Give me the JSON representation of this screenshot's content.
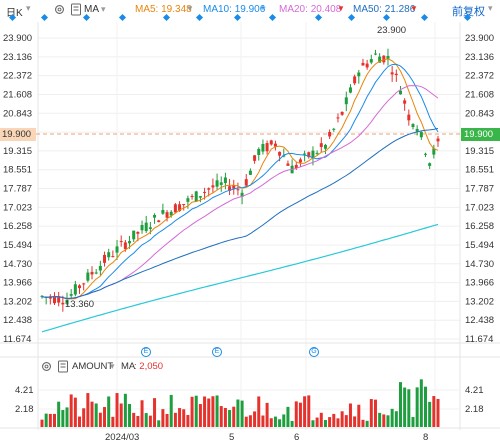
{
  "toolbar": {
    "period": "日K",
    "indicator": "MA",
    "ma_items": [
      {
        "label": "MA5:",
        "value": "19.348",
        "color": "#e8850c"
      },
      {
        "label": "MA10:",
        "value": "19.906",
        "color": "#1a8be8"
      },
      {
        "label": "MA20:",
        "value": "20.408",
        "color": "#d46bd6"
      },
      {
        "label": "MA50:",
        "value": "21.286",
        "color": "#1f6fbf"
      }
    ],
    "adjust": "前复权"
  },
  "price_axis": {
    "left_ticks": [
      "23.900",
      "23.136",
      "22.372",
      "21.608",
      "20.843",
      "19.900",
      "19.315",
      "18.551",
      "17.787",
      "17.023",
      "16.258",
      "15.494",
      "14.730",
      "13.966",
      "13.202",
      "12.438",
      "11.674"
    ],
    "right_ticks": [
      "23.900",
      "23.136",
      "22.372",
      "21.608",
      "20.843",
      "19.900",
      "19.315",
      "18.551",
      "17.787",
      "17.023",
      "16.258",
      "15.494",
      "14.730",
      "13.966",
      "13.202",
      "12.438",
      "11.674"
    ],
    "current_price": "19.900",
    "high_label": "23.900",
    "low_label": "13.360"
  },
  "events": [
    "E",
    "E",
    "G"
  ],
  "volume": {
    "title": "AMOUNT",
    "ma_label": "MA",
    "value": "2,050",
    "left_ticks": [
      "4.21",
      "2.18"
    ],
    "right_ticks": [
      "4.21",
      "2.18"
    ]
  },
  "x_axis": [
    "2024/03",
    "5",
    "6",
    "8"
  ],
  "colors": {
    "up": "#e5322d",
    "down": "#1e9e3e",
    "grid": "#eeeeee"
  }
}
